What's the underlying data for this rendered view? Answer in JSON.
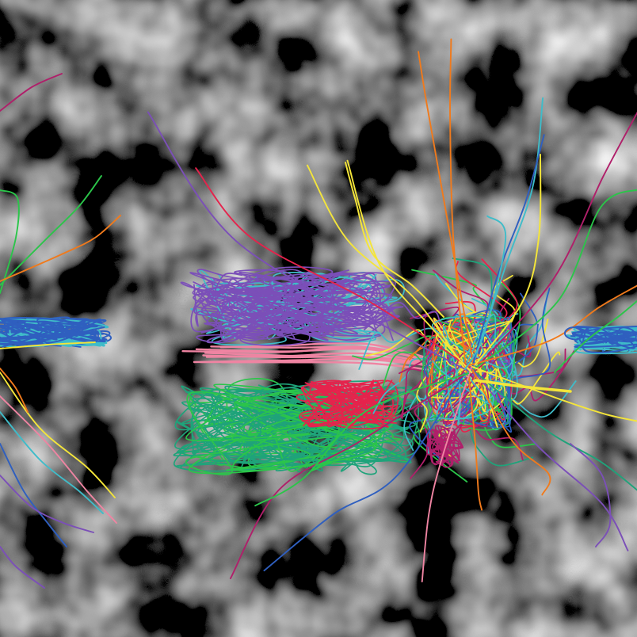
{
  "image": {
    "description_type": "generated-art",
    "background": {
      "palette": [
        "#2a2a2a",
        "#6e6e6e",
        "#a9a9a9",
        "#e6e6e6"
      ]
    },
    "palette": [
      "#e5234c",
      "#f07a1c",
      "#f4e53a",
      "#2bc54a",
      "#1fa37a",
      "#3fbcc9",
      "#2f5fbf",
      "#7b4fb8",
      "#b01f6a",
      "#ef84a2"
    ],
    "clusters": [
      {
        "name": "center-burst",
        "style": "radial"
      },
      {
        "name": "left-purple-knot",
        "style": "tangle"
      },
      {
        "name": "lower-left-green-knot",
        "style": "tangle"
      },
      {
        "name": "left-edge-blue-knot",
        "style": "tangle"
      },
      {
        "name": "right-edge-blue-knot",
        "style": "tangle"
      },
      {
        "name": "pink-streaks",
        "style": "streaks"
      }
    ]
  }
}
